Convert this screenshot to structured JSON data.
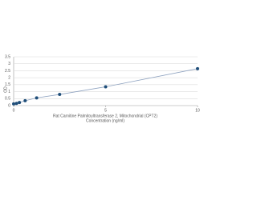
{
  "chart_data": {
    "type": "scatter",
    "title": "Rat Carnitine Palmitoyltransferase 2, Mitochondrial (CPT2)",
    "x_label": "Concentration (ng/ml)",
    "y_label": "OD",
    "x": [
      0,
      0.156,
      0.3125,
      0.625,
      1.25,
      2.5,
      5,
      10
    ],
    "values": [
      0.12,
      0.16,
      0.22,
      0.35,
      0.55,
      0.8,
      1.35,
      2.65
    ],
    "color": "#1f4e79",
    "line_color": "#8fa3c0",
    "xlim": [
      0,
      10
    ],
    "xticks": [
      0,
      5,
      10
    ],
    "ylim": [
      0,
      3.5
    ],
    "yticks": [
      0,
      0.5,
      1,
      1.5,
      2,
      2.5,
      3,
      3.5
    ],
    "grid": true
  }
}
